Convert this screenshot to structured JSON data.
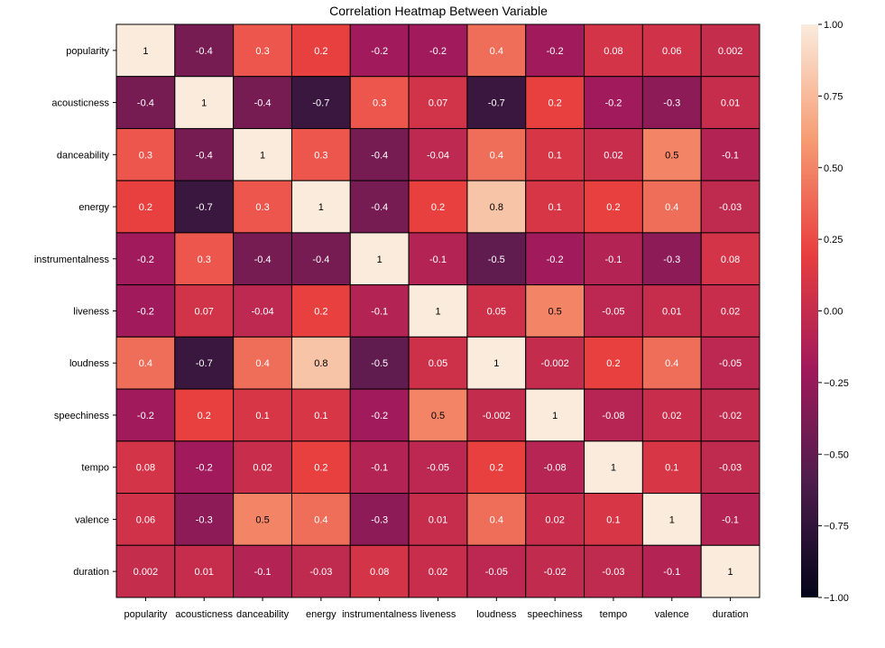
{
  "chart_data": {
    "type": "heatmap",
    "title": "Correlation Heatmap Between Variable",
    "xlabel": "",
    "ylabel": "",
    "variables": [
      "popularity",
      "acousticness",
      "danceability",
      "energy",
      "instrumentalness",
      "liveness",
      "loudness",
      "speechiness",
      "tempo",
      "valence",
      "duration"
    ],
    "annotations": [
      [
        "1",
        "-0.4",
        "0.3",
        "0.2",
        "-0.2",
        "-0.2",
        "0.4",
        "-0.2",
        "0.08",
        "0.06",
        "0.002"
      ],
      [
        "-0.4",
        "1",
        "-0.4",
        "-0.7",
        "0.3",
        "0.07",
        "-0.7",
        "0.2",
        "-0.2",
        "-0.3",
        "0.01"
      ],
      [
        "0.3",
        "-0.4",
        "1",
        "0.3",
        "-0.4",
        "-0.04",
        "0.4",
        "0.1",
        "0.02",
        "0.5",
        "-0.1"
      ],
      [
        "0.2",
        "-0.7",
        "0.3",
        "1",
        "-0.4",
        "0.2",
        "0.8",
        "0.1",
        "0.2",
        "0.4",
        "-0.03"
      ],
      [
        "-0.2",
        "0.3",
        "-0.4",
        "-0.4",
        "1",
        "-0.1",
        "-0.5",
        "-0.2",
        "-0.1",
        "-0.3",
        "0.08"
      ],
      [
        "-0.2",
        "0.07",
        "-0.04",
        "0.2",
        "-0.1",
        "1",
        "0.05",
        "0.5",
        "-0.05",
        "0.01",
        "0.02"
      ],
      [
        "0.4",
        "-0.7",
        "0.4",
        "0.8",
        "-0.5",
        "0.05",
        "1",
        "-0.002",
        "0.2",
        "0.4",
        "-0.05"
      ],
      [
        "-0.2",
        "0.2",
        "0.1",
        "0.1",
        "-0.2",
        "0.5",
        "-0.002",
        "1",
        "-0.08",
        "0.02",
        "-0.02"
      ],
      [
        "0.08",
        "-0.2",
        "0.02",
        "0.2",
        "-0.1",
        "-0.05",
        "0.2",
        "-0.08",
        "1",
        "0.1",
        "-0.03"
      ],
      [
        "0.06",
        "-0.3",
        "0.5",
        "0.4",
        "-0.3",
        "0.01",
        "0.4",
        "0.02",
        "0.1",
        "1",
        "-0.1"
      ],
      [
        "0.002",
        "0.01",
        "-0.1",
        "-0.03",
        "0.08",
        "0.02",
        "-0.05",
        "-0.02",
        "-0.03",
        "-0.1",
        "1"
      ]
    ],
    "colorbar": {
      "range": [
        -1,
        1
      ],
      "ticks": [
        1.0,
        0.75,
        0.5,
        0.25,
        0.0,
        -0.25,
        -0.5,
        -0.75,
        -1.0
      ],
      "tick_labels": [
        "1.00",
        "0.75",
        "0.50",
        "0.25",
        "0.00",
        "−0.25",
        "−0.50",
        "−0.75",
        "−1.00"
      ]
    },
    "colormap": [
      "#03051a",
      "#4c1d4b",
      "#a11a5b",
      "#e83f3f",
      "#f69c73",
      "#faebdd"
    ],
    "grid": false,
    "legend": "colorbar-right"
  }
}
